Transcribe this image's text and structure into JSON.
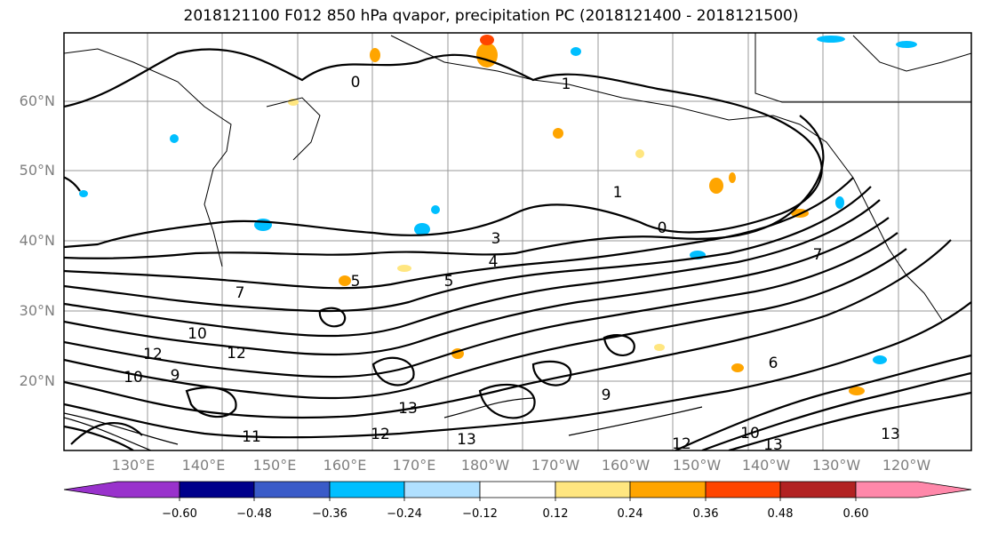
{
  "title": "2018121100 F012 850 hPa qvapor, precipitation PC (2018121400 - 2018121500)",
  "map": {
    "lat_labels": [
      "60°N",
      "50°N",
      "40°N",
      "30°N",
      "20°N"
    ],
    "lon_labels": [
      "130°E",
      "140°E",
      "150°E",
      "160°E",
      "170°E",
      "180°W",
      "170°W",
      "160°W",
      "150°W",
      "140°W",
      "130°W",
      "120°W"
    ],
    "contour_labels": [
      "0",
      "1",
      "1",
      "0",
      "3",
      "5",
      "4",
      "5",
      "7",
      "7",
      "6",
      "10",
      "12",
      "12",
      "10",
      "13",
      "11",
      "9",
      "13",
      "12",
      "13",
      "10",
      "13",
      "12",
      "9"
    ]
  },
  "colorbar": {
    "ticks": [
      "−0.60",
      "−0.48",
      "−0.36",
      "−0.24",
      "−0.12",
      "0.12",
      "0.24",
      "0.36",
      "0.48",
      "0.60"
    ],
    "colors": [
      "#9932cc",
      "#00008b",
      "#3a5bc8",
      "#00bfff",
      "#b0e0ff",
      "#ffffff",
      "#ffe680",
      "#ffa500",
      "#ff4500",
      "#b22222",
      "#ff88aa"
    ]
  }
}
